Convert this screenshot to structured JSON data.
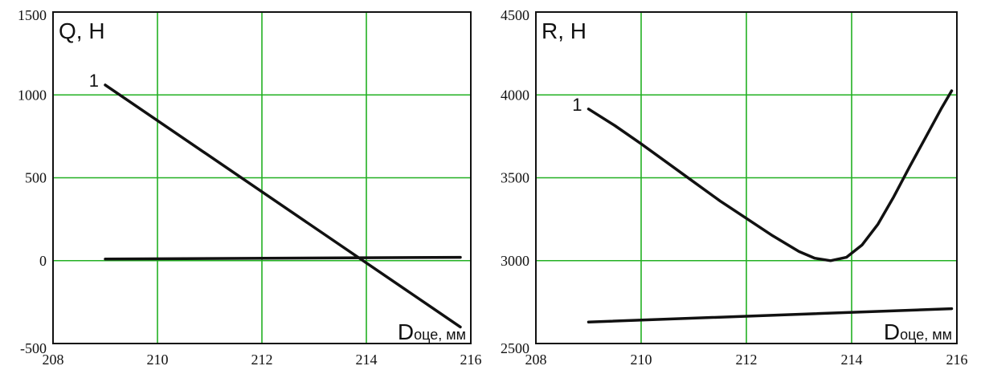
{
  "chart_data": [
    {
      "type": "line",
      "ylabel": "Q, Н",
      "xlabel_main": "D",
      "xlabel_sub": "оце, мм",
      "xlim": [
        208,
        216
      ],
      "ylim": [
        -500,
        1500
      ],
      "xticks": [
        "208",
        "210",
        "212",
        "214",
        "216"
      ],
      "yticks": [
        "-500",
        "0",
        "500",
        "1000",
        "1500"
      ],
      "grid": true,
      "series": [
        {
          "name": "1",
          "x": [
            209,
            215.8
          ],
          "y": [
            1060,
            -400
          ]
        },
        {
          "x": [
            209,
            215.8
          ],
          "y": [
            10,
            20
          ]
        }
      ]
    },
    {
      "type": "line",
      "ylabel": "R, Н",
      "xlabel_main": "D",
      "xlabel_sub": "оце, мм",
      "xlim": [
        208,
        216
      ],
      "ylim": [
        2500,
        4500
      ],
      "xticks": [
        "208",
        "210",
        "212",
        "214",
        "216"
      ],
      "yticks": [
        "2500",
        "3000",
        "3500",
        "4000",
        "4500"
      ],
      "grid": true,
      "series": [
        {
          "name": "1",
          "x": [
            209,
            209.5,
            210,
            210.5,
            211,
            211.5,
            212,
            212.5,
            213,
            213.3,
            213.6,
            213.9,
            214.2,
            214.5,
            214.8,
            215.1,
            215.4,
            215.7,
            215.9
          ],
          "y": [
            3915,
            3815,
            3705,
            3590,
            3475,
            3360,
            3255,
            3150,
            3055,
            3015,
            3000,
            3020,
            3095,
            3220,
            3385,
            3565,
            3740,
            3915,
            4025
          ]
        },
        {
          "x": [
            209,
            215.9
          ],
          "y": [
            2630,
            2710
          ]
        }
      ]
    }
  ]
}
